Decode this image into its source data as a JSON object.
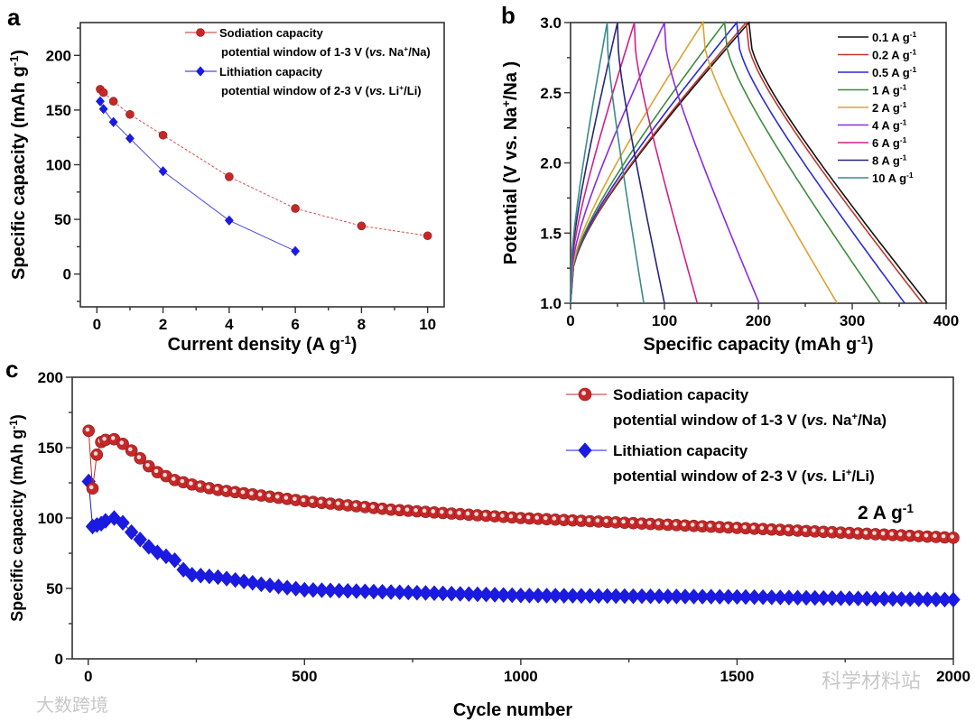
{
  "panel_labels": {
    "a": "a",
    "b": "b",
    "c": "c"
  },
  "watermarks": {
    "left": "大数跨境",
    "right": "科学材料站"
  },
  "chart_data": [
    {
      "id": "a",
      "type": "line",
      "xlabel": [
        {
          "t": "Current density (A g"
        },
        {
          "t": "-1",
          "sup": true
        },
        {
          "t": ")"
        }
      ],
      "ylabel": [
        {
          "t": "Specific capacity (mAh g"
        },
        {
          "t": "-1",
          "sup": true
        },
        {
          "t": ")"
        }
      ],
      "xlim": [
        -0.5,
        10.5
      ],
      "ylim": [
        -30,
        230
      ],
      "xticks": [
        0,
        2,
        4,
        6,
        8,
        10
      ],
      "yticks": [
        0,
        50,
        100,
        150,
        200
      ],
      "series": [
        {
          "name": "Sodiation capacity",
          "sub": [
            {
              "t": "potential window of 1-3 V ("
            },
            {
              "t": "vs.",
              "it": true
            },
            {
              "t": " Na"
            },
            {
              "t": "+",
              "sup": true
            },
            {
              "t": "/Na)"
            }
          ],
          "color": "#c62828",
          "marker": "circle",
          "x": [
            0.1,
            0.2,
            0.5,
            1,
            2,
            4,
            6,
            8,
            10
          ],
          "y": [
            169,
            166,
            158,
            146,
            127,
            89,
            60,
            44,
            35
          ]
        },
        {
          "name": "Lithiation capacity",
          "sub": [
            {
              "t": "potential window of 2-3 V ("
            },
            {
              "t": "vs.",
              "it": true
            },
            {
              "t": " Li"
            },
            {
              "t": "+",
              "sup": true
            },
            {
              "t": "/Li)"
            }
          ],
          "color": "#1a1ae0",
          "marker": "diamond",
          "x": [
            0.1,
            0.2,
            0.5,
            1,
            2,
            4,
            6
          ],
          "y": [
            158,
            151,
            139,
            124,
            94,
            49,
            21
          ]
        }
      ]
    },
    {
      "id": "b",
      "type": "line",
      "xlabel": [
        {
          "t": "Specific capacity (mAh g"
        },
        {
          "t": "-1",
          "sup": true
        },
        {
          "t": ")"
        }
      ],
      "ylabel": [
        {
          "t": "Potential (V vs. Na"
        },
        {
          "t": "+",
          "sup": true
        },
        {
          "t": "/Na )"
        }
      ],
      "xlim": [
        0,
        400
      ],
      "ylim": [
        1.0,
        3.0
      ],
      "xticks": [
        0,
        100,
        200,
        300,
        400
      ],
      "yticks": [
        1.0,
        1.5,
        2.0,
        2.5,
        3.0
      ],
      "series": [
        {
          "name": "0.1 A g",
          "sup": "-1",
          "color": "#111111",
          "charge_capacity": 190,
          "discharge_end": 380
        },
        {
          "name": "0.2 A g",
          "sup": "-1",
          "color": "#c0392b",
          "charge_capacity": 187,
          "discharge_end": 375
        },
        {
          "name": "0.5 A g",
          "sup": "-1",
          "color": "#2a2ad8",
          "charge_capacity": 177,
          "discharge_end": 356
        },
        {
          "name": "1  A g",
          "sup": "-1",
          "color": "#3c8c3c",
          "charge_capacity": 164,
          "discharge_end": 330
        },
        {
          "name": "2  A g",
          "sup": "-1",
          "color": "#e0a030",
          "charge_capacity": 141,
          "discharge_end": 284
        },
        {
          "name": "4  A g",
          "sup": "-1",
          "color": "#8a2be2",
          "charge_capacity": 100,
          "discharge_end": 201
        },
        {
          "name": "6  A g",
          "sup": "-1",
          "color": "#d0208a",
          "charge_capacity": 68,
          "discharge_end": 135
        },
        {
          "name": "8  A g",
          "sup": "-1",
          "color": "#262680",
          "charge_capacity": 50,
          "discharge_end": 100
        },
        {
          "name": "10 A g",
          "sup": "-1",
          "color": "#3a8a8a",
          "charge_capacity": 39,
          "discharge_end": 78
        }
      ]
    },
    {
      "id": "c",
      "type": "scatter",
      "xlabel": [
        {
          "t": "Cycle number"
        }
      ],
      "ylabel": [
        {
          "t": "Specific capacity (mAh g"
        },
        {
          "t": "-1",
          "sup": true
        },
        {
          "t": ")"
        }
      ],
      "annotation": [
        {
          "t": "2 A g"
        },
        {
          "t": "-1",
          "sup": true
        }
      ],
      "xlim": [
        -37,
        2000
      ],
      "ylim": [
        0,
        200
      ],
      "xticks": [
        0,
        500,
        1000,
        1500,
        2000
      ],
      "yticks": [
        0,
        50,
        100,
        150,
        200
      ],
      "series": [
        {
          "name": "Sodiation capacity",
          "sub": [
            {
              "t": "potential window of 1-3 V ("
            },
            {
              "t": "vs.",
              "it": true
            },
            {
              "t": " Na"
            },
            {
              "t": "+",
              "sup": true
            },
            {
              "t": "/Na)"
            }
          ],
          "color": "#c62828",
          "marker": "circle",
          "x": [
            1,
            10,
            20,
            30,
            50,
            70,
            100,
            150,
            200,
            250,
            300,
            400,
            500,
            700,
            1000,
            1500,
            2000
          ],
          "y": [
            162,
            121,
            145,
            154,
            157,
            155,
            148,
            134,
            127,
            123,
            120,
            116,
            112,
            106,
            100,
            93,
            86
          ]
        },
        {
          "name": "Lithiation capacity",
          "sub": [
            {
              "t": "potential window of 2-3 V ("
            },
            {
              "t": "vs.",
              "it": true
            },
            {
              "t": " Li"
            },
            {
              "t": "+",
              "sup": true
            },
            {
              "t": "/Li)"
            }
          ],
          "color": "#1a1ae0",
          "marker": "diamond",
          "x": [
            1,
            10,
            30,
            50,
            70,
            100,
            150,
            200,
            230,
            300,
            400,
            500,
            1000,
            1500,
            2000
          ],
          "y": [
            126,
            94,
            96,
            100,
            100,
            90,
            77,
            70,
            60,
            58,
            53,
            49,
            45,
            44,
            42
          ]
        }
      ]
    }
  ]
}
